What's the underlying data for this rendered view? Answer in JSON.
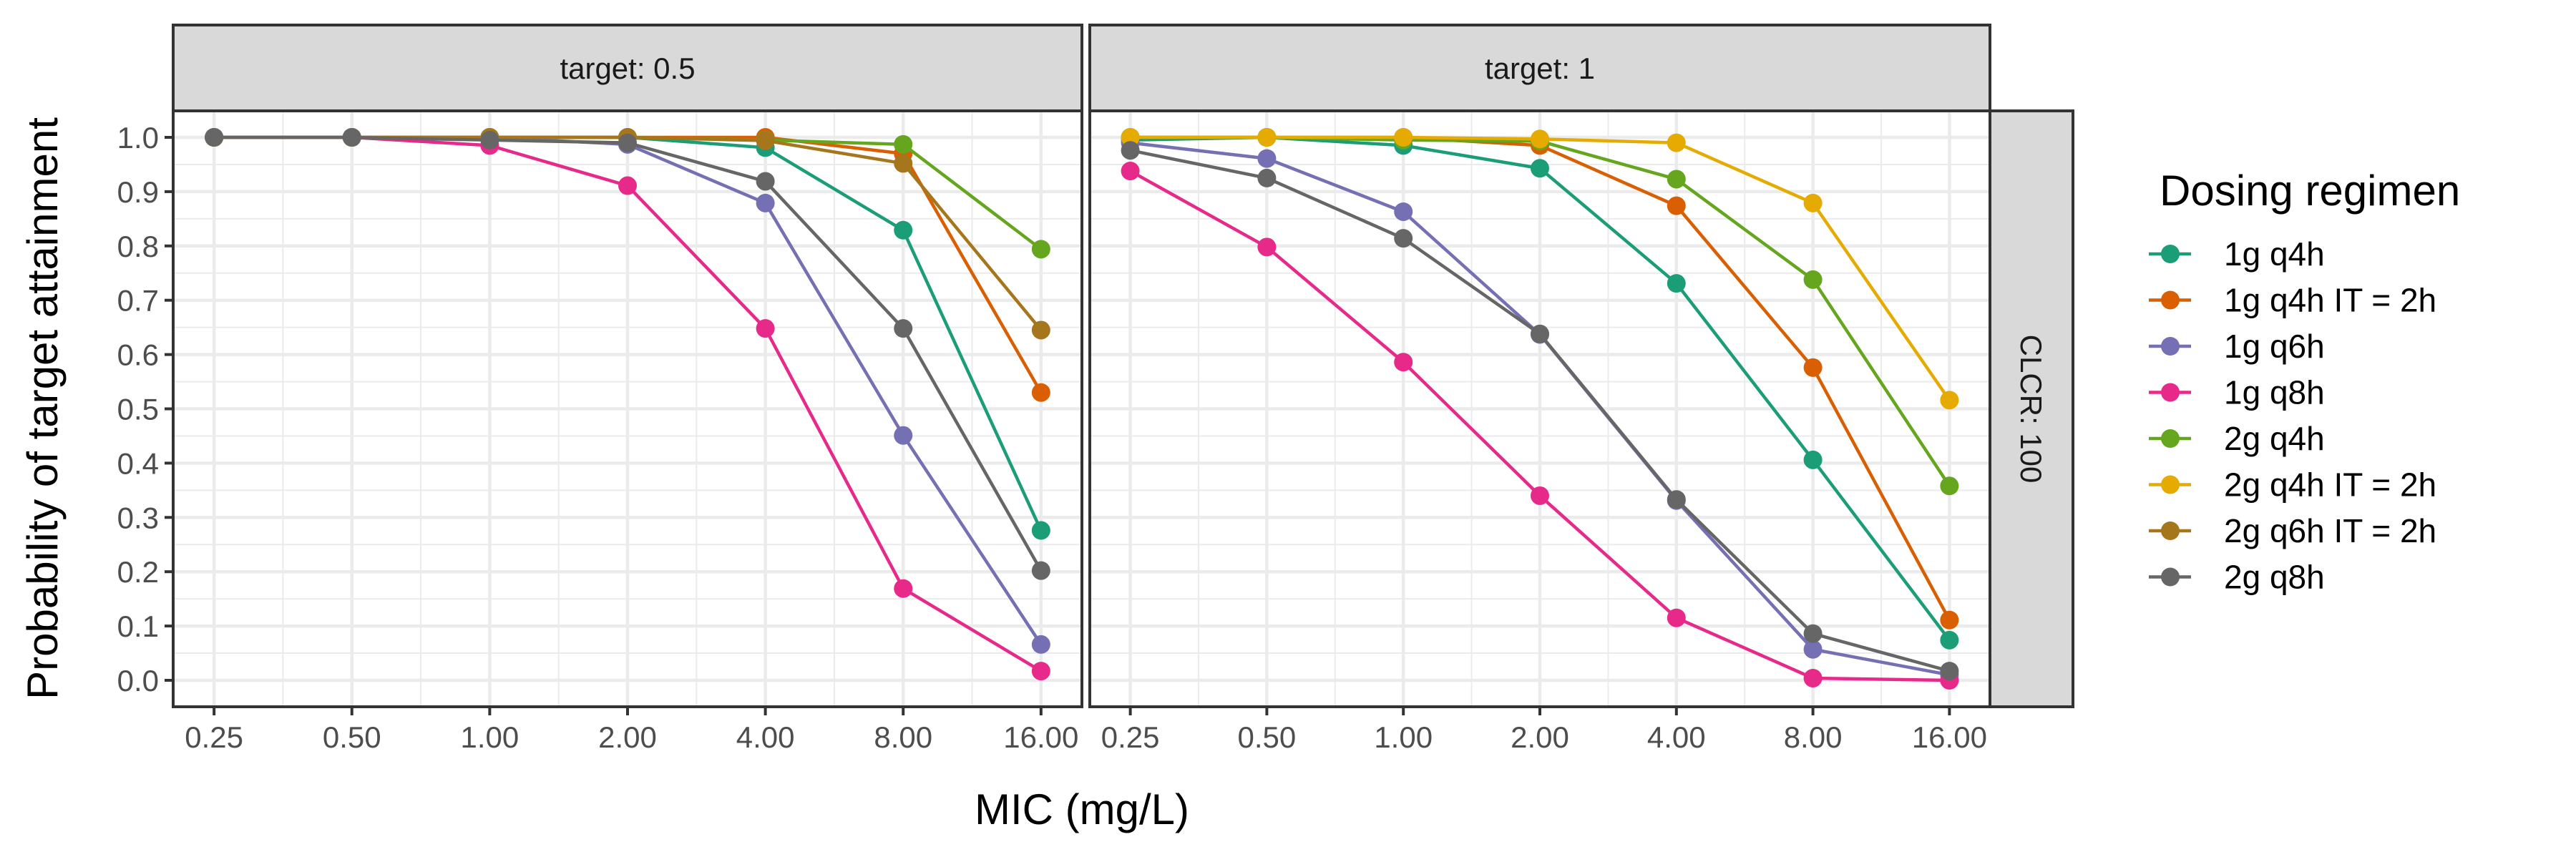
{
  "chart_data": {
    "type": "line",
    "xlabel": "MIC (mg/L)",
    "ylabel": "Probability of target attainment",
    "x_scale": "log2",
    "x": [
      0.25,
      0.5,
      1,
      2,
      4,
      8,
      16
    ],
    "x_tick_labels": [
      "0.25",
      "0.50",
      "1.00",
      "2.00",
      "4.00",
      "8.00",
      "16.00"
    ],
    "ylim": [
      0,
      1
    ],
    "y_ticks": [
      0,
      0.1,
      0.2,
      0.3,
      0.4,
      0.5,
      0.6,
      0.7,
      0.8,
      0.9,
      1.0
    ],
    "y_tick_labels": [
      "0.0",
      "0.1",
      "0.2",
      "0.3",
      "0.4",
      "0.5",
      "0.6",
      "0.7",
      "0.8",
      "0.9",
      "1.0"
    ],
    "grid": true,
    "row_strip": "CLCR: 100",
    "legend": {
      "title": "Dosing regimen",
      "placement": "right"
    },
    "series_styles": [
      {
        "name": "1g q4h",
        "color": "#1B9E77"
      },
      {
        "name": "1g q4h IT = 2h",
        "color": "#D95F02"
      },
      {
        "name": "1g q6h",
        "color": "#7570B3"
      },
      {
        "name": "1g q8h",
        "color": "#E7298A"
      },
      {
        "name": "2g q4h",
        "color": "#66A61E"
      },
      {
        "name": "2g q4h IT = 2h",
        "color": "#E6AB02"
      },
      {
        "name": "2g q6h IT = 2h",
        "color": "#A6761D"
      },
      {
        "name": "2g q8h",
        "color": "#666666"
      }
    ],
    "panels": [
      {
        "strip": "target: 0.5",
        "series": [
          {
            "name": "1g q4h",
            "values": [
              1.0,
              1.0,
              1.0,
              1.0,
              0.981,
              0.829,
              0.276
            ]
          },
          {
            "name": "1g q4h IT = 2h",
            "values": [
              1.0,
              1.0,
              1.0,
              1.0,
              1.0,
              0.97,
              0.53
            ]
          },
          {
            "name": "1g q6h",
            "values": [
              1.0,
              1.0,
              1.0,
              0.987,
              0.879,
              0.451,
              0.066
            ]
          },
          {
            "name": "1g q8h",
            "values": [
              1.0,
              1.0,
              0.985,
              0.911,
              0.648,
              0.169,
              0.017
            ]
          },
          {
            "name": "2g q4h",
            "values": [
              1.0,
              1.0,
              1.0,
              1.0,
              0.995,
              0.987,
              0.794
            ]
          },
          {
            "name": "2g q4h IT = 2h",
            "values": [
              null,
              null,
              null,
              null,
              null,
              null,
              null
            ]
          },
          {
            "name": "2g q6h IT = 2h",
            "values": [
              1.0,
              1.0,
              1.0,
              1.0,
              0.994,
              0.952,
              0.645
            ]
          },
          {
            "name": "2g q8h",
            "values": [
              1.0,
              1.0,
              0.995,
              0.99,
              0.919,
              0.648,
              0.202
            ]
          }
        ]
      },
      {
        "strip": "target: 1",
        "series": [
          {
            "name": "1g q4h",
            "values": [
              0.995,
              1.0,
              0.985,
              0.943,
              0.731,
              0.406,
              0.074
            ]
          },
          {
            "name": "1g q4h IT = 2h",
            "values": [
              1.0,
              1.0,
              1.0,
              0.985,
              0.874,
              0.576,
              0.111
            ]
          },
          {
            "name": "1g q6h",
            "values": [
              0.99,
              0.961,
              0.863,
              0.637,
              0.331,
              0.057,
              0.01
            ]
          },
          {
            "name": "1g q8h",
            "values": [
              0.938,
              0.798,
              0.586,
              0.34,
              0.115,
              0.004,
              0.0
            ]
          },
          {
            "name": "2g q4h",
            "values": [
              1.0,
              1.0,
              0.995,
              0.993,
              0.923,
              0.738,
              0.358
            ]
          },
          {
            "name": "2g q4h IT = 2h",
            "values": [
              1.0,
              1.0,
              1.0,
              0.997,
              0.99,
              0.879,
              0.516
            ]
          },
          {
            "name": "2g q6h IT = 2h",
            "values": [
              null,
              null,
              null,
              null,
              null,
              null,
              null
            ]
          },
          {
            "name": "2g q8h",
            "values": [
              0.976,
              0.925,
              0.814,
              0.638,
              0.333,
              0.086,
              0.017
            ]
          }
        ]
      }
    ]
  }
}
